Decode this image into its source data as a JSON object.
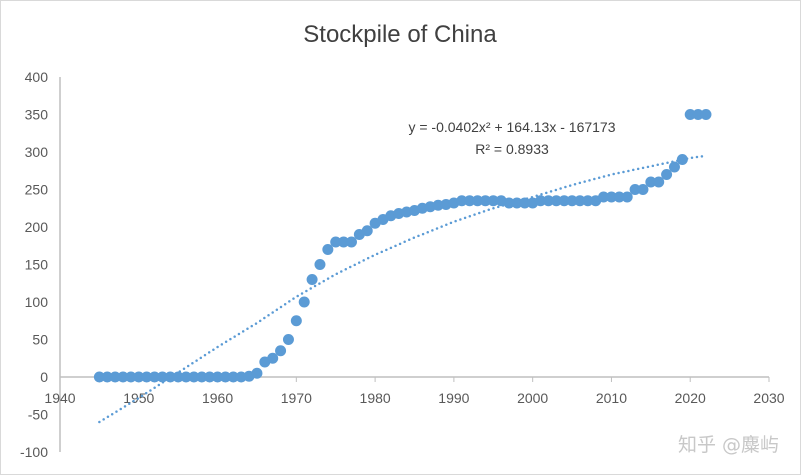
{
  "chart_data": {
    "type": "scatter",
    "title": "Stockpile of China",
    "xlabel": "",
    "ylabel": "",
    "xlim": [
      1940,
      2030
    ],
    "ylim": [
      -100,
      400
    ],
    "x_ticks": [
      1940,
      1950,
      1960,
      1970,
      1980,
      1990,
      2000,
      2010,
      2020,
      2030
    ],
    "y_ticks": [
      -100,
      -50,
      0,
      50,
      100,
      150,
      200,
      250,
      300,
      350,
      400
    ],
    "grid": false,
    "series": [
      {
        "name": "Stockpile",
        "color": "#5b9bd5",
        "x": [
          1945,
          1946,
          1947,
          1948,
          1949,
          1950,
          1951,
          1952,
          1953,
          1954,
          1955,
          1956,
          1957,
          1958,
          1959,
          1960,
          1961,
          1962,
          1963,
          1964,
          1965,
          1966,
          1967,
          1968,
          1969,
          1970,
          1971,
          1972,
          1973,
          1974,
          1975,
          1976,
          1977,
          1978,
          1979,
          1980,
          1981,
          1982,
          1983,
          1984,
          1985,
          1986,
          1987,
          1988,
          1989,
          1990,
          1991,
          1992,
          1993,
          1994,
          1995,
          1996,
          1997,
          1998,
          1999,
          2000,
          2001,
          2002,
          2003,
          2004,
          2005,
          2006,
          2007,
          2008,
          2009,
          2010,
          2011,
          2012,
          2013,
          2014,
          2015,
          2016,
          2017,
          2018,
          2019,
          2020,
          2021,
          2022
        ],
        "y": [
          0,
          0,
          0,
          0,
          0,
          0,
          0,
          0,
          0,
          0,
          0,
          0,
          0,
          0,
          0,
          0,
          0,
          0,
          0,
          1,
          5,
          20,
          25,
          35,
          50,
          75,
          100,
          130,
          150,
          170,
          180,
          180,
          180,
          190,
          195,
          205,
          210,
          215,
          218,
          220,
          222,
          225,
          227,
          229,
          230,
          232,
          235,
          235,
          235,
          235,
          235,
          235,
          232,
          232,
          232,
          232,
          235,
          235,
          235,
          235,
          235,
          235,
          235,
          235,
          240,
          240,
          240,
          240,
          250,
          250,
          260,
          260,
          270,
          280,
          290,
          350,
          350,
          350
        ]
      }
    ],
    "trendline": {
      "type": "polynomial-2",
      "style": "dotted",
      "color": "#5b9bd5",
      "equation": "y = -0.0402x² + 164.13x - 167173",
      "r_squared": "R² = 0.8933",
      "samples": [
        [
          1945,
          -60
        ],
        [
          1950,
          -28
        ],
        [
          1955,
          6
        ],
        [
          1960,
          40
        ],
        [
          1965,
          72
        ],
        [
          1970,
          107
        ],
        [
          1975,
          137
        ],
        [
          1980,
          163
        ],
        [
          1985,
          186
        ],
        [
          1990,
          207
        ],
        [
          1995,
          225
        ],
        [
          2000,
          240
        ],
        [
          2005,
          256
        ],
        [
          2010,
          270
        ],
        [
          2015,
          281
        ],
        [
          2020,
          292
        ],
        [
          2022,
          295
        ]
      ]
    }
  },
  "watermark": "知乎 @麋屿"
}
